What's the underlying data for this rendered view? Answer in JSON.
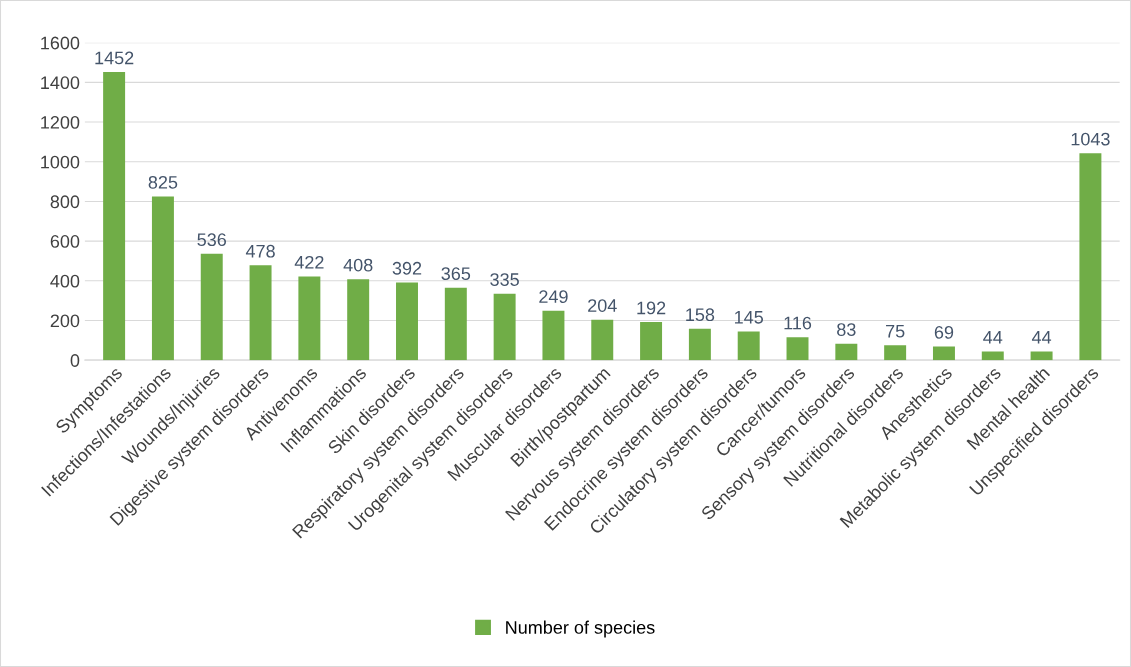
{
  "chart_data": {
    "type": "bar",
    "categories": [
      "Symptoms",
      "Infections/Infestations",
      "Wounds/Injuries",
      "Digestive system disorders",
      "Antivenoms",
      "Inflammations",
      "Skin disorders",
      "Respiratory system disorders",
      "Urogenital system disorders",
      "Muscular disorders",
      "Birth/postpartum",
      "Nervous system disorders",
      "Endocrine system disorders",
      "Circulatory system disorders",
      "Cancer/tumors",
      "Sensory system disorders",
      "Nutritional disorders",
      "Anesthetics",
      "Metabolic system disorders",
      "Mental health",
      "Unspecified disorders"
    ],
    "series": [
      {
        "name": "Number of species",
        "color": "#70ad47",
        "values": [
          1452,
          825,
          536,
          478,
          422,
          408,
          392,
          365,
          335,
          249,
          204,
          192,
          158,
          145,
          116,
          83,
          75,
          69,
          44,
          44,
          1043
        ]
      }
    ],
    "ylim": [
      0,
      1600
    ],
    "yticks": [
      0,
      200,
      400,
      600,
      800,
      1000,
      1200,
      1400,
      1600
    ],
    "grid": "y",
    "legend": "bottom",
    "data_labels": true
  }
}
